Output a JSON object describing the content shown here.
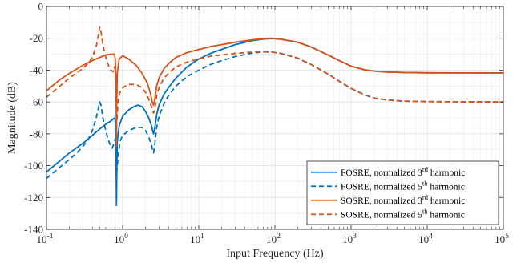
{
  "chart_data": {
    "type": "line",
    "xlabel": "Input Frequency (Hz)",
    "ylabel": "Magnitude (dB)",
    "xscale": "log",
    "xlim": [
      0.1,
      100000
    ],
    "ylim": [
      -140,
      0
    ],
    "grid": true,
    "legend_placement": "bottom-right",
    "x_ticks": [
      {
        "value": 0.1,
        "base": "10",
        "exp": "-1"
      },
      {
        "value": 1,
        "base": "10",
        "exp": "0"
      },
      {
        "value": 10,
        "base": "10",
        "exp": "1"
      },
      {
        "value": 100,
        "base": "10",
        "exp": "2"
      },
      {
        "value": 1000,
        "base": "10",
        "exp": "3"
      },
      {
        "value": 10000,
        "base": "10",
        "exp": "4"
      },
      {
        "value": 100000,
        "base": "10",
        "exp": "5"
      }
    ],
    "y_ticks": [
      {
        "value": 0,
        "label": "0"
      },
      {
        "value": -20,
        "label": "-20"
      },
      {
        "value": -40,
        "label": "-40"
      },
      {
        "value": -60,
        "label": "-60"
      },
      {
        "value": -80,
        "label": "-80"
      },
      {
        "value": -100,
        "label": "-100"
      },
      {
        "value": -120,
        "label": "-120"
      },
      {
        "value": -140,
        "label": "-140"
      }
    ],
    "series": [
      {
        "name": "FOSRE, normalized 3rd harmonic",
        "legend": {
          "prefix": "FOSRE, normalized 3",
          "sup": "rd",
          "suffix": " harmonic"
        },
        "color": "#0072BD",
        "dash": "solid",
        "points": [
          [
            0.1,
            -104
          ],
          [
            0.15,
            -97
          ],
          [
            0.2,
            -92
          ],
          [
            0.3,
            -86
          ],
          [
            0.4,
            -81
          ],
          [
            0.5,
            -77
          ],
          [
            0.6,
            -74
          ],
          [
            0.7,
            -72
          ],
          [
            0.78,
            -70
          ],
          [
            0.8,
            -72
          ],
          [
            0.815,
            -85
          ],
          [
            0.825,
            -110
          ],
          [
            0.83,
            -125
          ],
          [
            0.838,
            -105
          ],
          [
            0.85,
            -85
          ],
          [
            0.9,
            -75
          ],
          [
            1.0,
            -69
          ],
          [
            1.2,
            -65
          ],
          [
            1.4,
            -63
          ],
          [
            1.6,
            -62
          ],
          [
            1.8,
            -63
          ],
          [
            2.0,
            -66
          ],
          [
            2.2,
            -70
          ],
          [
            2.4,
            -75
          ],
          [
            2.5,
            -79
          ],
          [
            2.55,
            -80
          ],
          [
            2.65,
            -76
          ],
          [
            2.8,
            -68
          ],
          [
            3.0,
            -62
          ],
          [
            3.5,
            -55
          ],
          [
            4,
            -51
          ],
          [
            5,
            -45
          ],
          [
            7,
            -38
          ],
          [
            10,
            -33
          ],
          [
            15,
            -29
          ],
          [
            20,
            -27
          ],
          [
            30,
            -24
          ],
          [
            50,
            -21.5
          ],
          [
            70,
            -20.5
          ],
          [
            90,
            -20.2
          ],
          [
            120,
            -20.6
          ],
          [
            200,
            -22.5
          ],
          [
            300,
            -25.5
          ],
          [
            500,
            -30.5
          ],
          [
            700,
            -34
          ],
          [
            1000,
            -37.5
          ],
          [
            1500,
            -39.8
          ],
          [
            2000,
            -40.6
          ],
          [
            3000,
            -41.2
          ],
          [
            5000,
            -41.5
          ],
          [
            10000,
            -41.7
          ],
          [
            100000,
            -41.8
          ]
        ]
      },
      {
        "name": "FOSRE, normalized 5th harmonic",
        "legend": {
          "prefix": "FOSRE, normalized 5",
          "sup": "th",
          "suffix": " harmonic"
        },
        "color": "#0072BD",
        "dash": "dashed",
        "points": [
          [
            0.1,
            -108
          ],
          [
            0.15,
            -101
          ],
          [
            0.2,
            -96
          ],
          [
            0.25,
            -92
          ],
          [
            0.3,
            -88
          ],
          [
            0.35,
            -84
          ],
          [
            0.4,
            -78
          ],
          [
            0.45,
            -70
          ],
          [
            0.48,
            -64
          ],
          [
            0.5,
            -60
          ],
          [
            0.52,
            -62
          ],
          [
            0.55,
            -70
          ],
          [
            0.6,
            -78
          ],
          [
            0.65,
            -84
          ],
          [
            0.7,
            -88
          ],
          [
            0.73,
            -89
          ],
          [
            0.77,
            -86
          ],
          [
            0.8,
            -83
          ],
          [
            0.82,
            -90
          ],
          [
            0.84,
            -103
          ],
          [
            0.87,
            -95
          ],
          [
            0.92,
            -85
          ],
          [
            1.0,
            -81
          ],
          [
            1.2,
            -78
          ],
          [
            1.5,
            -76
          ],
          [
            1.8,
            -76
          ],
          [
            2.0,
            -78
          ],
          [
            2.2,
            -82
          ],
          [
            2.4,
            -87
          ],
          [
            2.5,
            -91
          ],
          [
            2.55,
            -92
          ],
          [
            2.65,
            -86
          ],
          [
            2.8,
            -76
          ],
          [
            3.0,
            -69
          ],
          [
            3.5,
            -61
          ],
          [
            4,
            -56
          ],
          [
            5,
            -50
          ],
          [
            7,
            -44
          ],
          [
            10,
            -40
          ],
          [
            15,
            -36
          ],
          [
            20,
            -34
          ],
          [
            30,
            -31.5
          ],
          [
            50,
            -29.3
          ],
          [
            70,
            -28.5
          ],
          [
            90,
            -28.6
          ],
          [
            120,
            -29.5
          ],
          [
            200,
            -32.5
          ],
          [
            300,
            -36.5
          ],
          [
            500,
            -42.5
          ],
          [
            700,
            -47
          ],
          [
            1000,
            -51.5
          ],
          [
            1500,
            -55.5
          ],
          [
            2000,
            -57.5
          ],
          [
            3000,
            -58.8
          ],
          [
            5000,
            -59.5
          ],
          [
            10000,
            -59.8
          ],
          [
            100000,
            -60
          ]
        ]
      },
      {
        "name": "SOSRE, normalized 3rd harmonic",
        "legend": {
          "prefix": "SOSRE, normalized 3",
          "sup": "rd",
          "suffix": " harmonic"
        },
        "color": "#D95319",
        "dash": "solid",
        "points": [
          [
            0.1,
            -53
          ],
          [
            0.15,
            -46
          ],
          [
            0.2,
            -42
          ],
          [
            0.3,
            -37
          ],
          [
            0.4,
            -34
          ],
          [
            0.5,
            -32
          ],
          [
            0.6,
            -30.5
          ],
          [
            0.7,
            -30
          ],
          [
            0.78,
            -30
          ],
          [
            0.8,
            -33
          ],
          [
            0.815,
            -45
          ],
          [
            0.825,
            -65
          ],
          [
            0.83,
            -88
          ],
          [
            0.838,
            -60
          ],
          [
            0.85,
            -42
          ],
          [
            0.9,
            -33
          ],
          [
            1.0,
            -31
          ],
          [
            1.2,
            -33
          ],
          [
            1.5,
            -37
          ],
          [
            1.8,
            -42
          ],
          [
            2.1,
            -48
          ],
          [
            2.3,
            -54
          ],
          [
            2.45,
            -60
          ],
          [
            2.55,
            -62
          ],
          [
            2.65,
            -58
          ],
          [
            2.8,
            -50
          ],
          [
            3.0,
            -45
          ],
          [
            3.5,
            -39
          ],
          [
            4,
            -36
          ],
          [
            5,
            -32
          ],
          [
            7,
            -29
          ],
          [
            10,
            -27
          ],
          [
            15,
            -25
          ],
          [
            20,
            -24
          ],
          [
            30,
            -22.5
          ],
          [
            50,
            -21
          ],
          [
            70,
            -20.3
          ],
          [
            90,
            -20
          ],
          [
            120,
            -20.6
          ],
          [
            200,
            -22.5
          ],
          [
            300,
            -25.5
          ],
          [
            500,
            -30.5
          ],
          [
            700,
            -34
          ],
          [
            1000,
            -37.5
          ],
          [
            1500,
            -39.8
          ],
          [
            2000,
            -40.6
          ],
          [
            3000,
            -41.2
          ],
          [
            5000,
            -41.5
          ],
          [
            10000,
            -41.7
          ],
          [
            100000,
            -41.8
          ]
        ]
      },
      {
        "name": "SOSRE, normalized 5th harmonic",
        "legend": {
          "prefix": "SOSRE, normalized 5",
          "sup": "th",
          "suffix": " harmonic"
        },
        "color": "#D95319",
        "dash": "dashed",
        "points": [
          [
            0.1,
            -57
          ],
          [
            0.15,
            -50
          ],
          [
            0.2,
            -45
          ],
          [
            0.3,
            -39
          ],
          [
            0.35,
            -36
          ],
          [
            0.4,
            -32
          ],
          [
            0.45,
            -25
          ],
          [
            0.48,
            -18
          ],
          [
            0.5,
            -13
          ],
          [
            0.52,
            -16
          ],
          [
            0.55,
            -24
          ],
          [
            0.6,
            -32
          ],
          [
            0.65,
            -37
          ],
          [
            0.7,
            -40
          ],
          [
            0.75,
            -41
          ],
          [
            0.78,
            -38
          ],
          [
            0.8,
            -40
          ],
          [
            0.82,
            -54
          ],
          [
            0.84,
            -72
          ],
          [
            0.87,
            -60
          ],
          [
            0.92,
            -54
          ],
          [
            1.0,
            -51
          ],
          [
            1.2,
            -49
          ],
          [
            1.5,
            -49
          ],
          [
            1.8,
            -51
          ],
          [
            2.0,
            -54
          ],
          [
            2.2,
            -58
          ],
          [
            2.4,
            -63
          ],
          [
            2.5,
            -66
          ],
          [
            2.55,
            -67
          ],
          [
            2.65,
            -64
          ],
          [
            2.8,
            -56
          ],
          [
            3.0,
            -51
          ],
          [
            3.5,
            -45
          ],
          [
            4,
            -42
          ],
          [
            5,
            -38
          ],
          [
            7,
            -35
          ],
          [
            10,
            -33
          ],
          [
            15,
            -31
          ],
          [
            20,
            -30.5
          ],
          [
            30,
            -29.5
          ],
          [
            50,
            -28.7
          ],
          [
            70,
            -28.5
          ],
          [
            90,
            -28.6
          ],
          [
            120,
            -29.5
          ],
          [
            200,
            -32.5
          ],
          [
            300,
            -36.5
          ],
          [
            500,
            -42.5
          ],
          [
            700,
            -47
          ],
          [
            1000,
            -51.5
          ],
          [
            1500,
            -55.5
          ],
          [
            2000,
            -57.5
          ],
          [
            3000,
            -58.8
          ],
          [
            5000,
            -59.5
          ],
          [
            10000,
            -59.8
          ],
          [
            100000,
            -60
          ]
        ]
      }
    ]
  }
}
